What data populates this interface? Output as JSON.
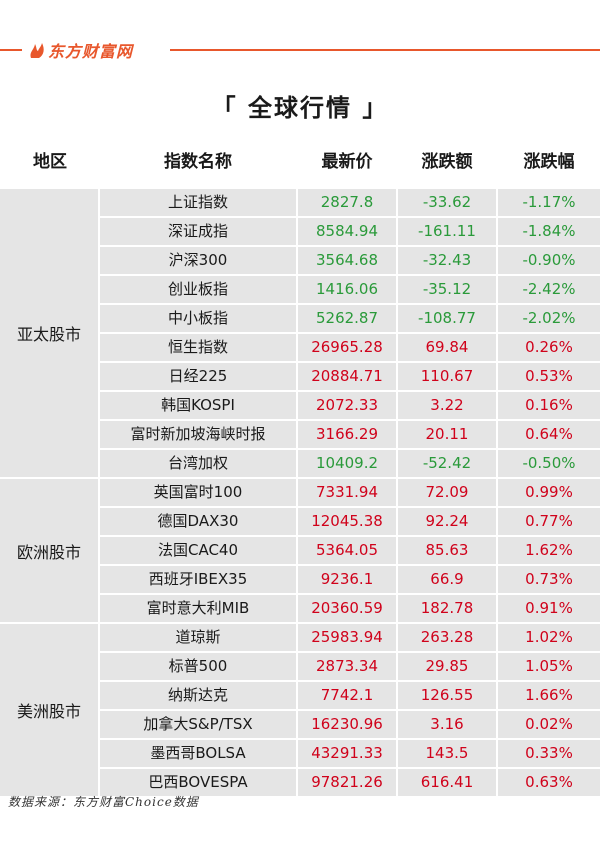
{
  "brand": {
    "logo_text": "东方财富网",
    "accent": "#e8572c"
  },
  "title": "「 全球行情 」",
  "headers": {
    "region": "地区",
    "name": "指数名称",
    "price": "最新价",
    "change": "涨跌额",
    "pct": "涨跌幅"
  },
  "colors": {
    "up": "#d0021b",
    "down": "#2a9a3a",
    "cell_bg": "#e5e5e5"
  },
  "regions": [
    {
      "label": "亚太股市",
      "rows": [
        {
          "name": "上证指数",
          "price": "2827.8",
          "change": "-33.62",
          "pct": "-1.17%",
          "dir": "down"
        },
        {
          "name": "深证成指",
          "price": "8584.94",
          "change": "-161.11",
          "pct": "-1.84%",
          "dir": "down"
        },
        {
          "name": "沪深300",
          "price": "3564.68",
          "change": "-32.43",
          "pct": "-0.90%",
          "dir": "down"
        },
        {
          "name": "创业板指",
          "price": "1416.06",
          "change": "-35.12",
          "pct": "-2.42%",
          "dir": "down"
        },
        {
          "name": "中小板指",
          "price": "5262.87",
          "change": "-108.77",
          "pct": "-2.02%",
          "dir": "down"
        },
        {
          "name": "恒生指数",
          "price": "26965.28",
          "change": "69.84",
          "pct": "0.26%",
          "dir": "up"
        },
        {
          "name": "日经225",
          "price": "20884.71",
          "change": "110.67",
          "pct": "0.53%",
          "dir": "up"
        },
        {
          "name": "韩国KOSPI",
          "price": "2072.33",
          "change": "3.22",
          "pct": "0.16%",
          "dir": "up"
        },
        {
          "name": "富时新加坡海峡时报",
          "price": "3166.29",
          "change": "20.11",
          "pct": "0.64%",
          "dir": "up"
        },
        {
          "name": "台湾加权",
          "price": "10409.2",
          "change": "-52.42",
          "pct": "-0.50%",
          "dir": "down"
        }
      ]
    },
    {
      "label": "欧洲股市",
      "rows": [
        {
          "name": "英国富时100",
          "price": "7331.94",
          "change": "72.09",
          "pct": "0.99%",
          "dir": "up"
        },
        {
          "name": "德国DAX30",
          "price": "12045.38",
          "change": "92.24",
          "pct": "0.77%",
          "dir": "up"
        },
        {
          "name": "法国CAC40",
          "price": "5364.05",
          "change": "85.63",
          "pct": "1.62%",
          "dir": "up"
        },
        {
          "name": "西班牙IBEX35",
          "price": "9236.1",
          "change": "66.9",
          "pct": "0.73%",
          "dir": "up"
        },
        {
          "name": "富时意大利MIB",
          "price": "20360.59",
          "change": "182.78",
          "pct": "0.91%",
          "dir": "up"
        }
      ]
    },
    {
      "label": "美洲股市",
      "rows": [
        {
          "name": "道琼斯",
          "price": "25983.94",
          "change": "263.28",
          "pct": "1.02%",
          "dir": "up"
        },
        {
          "name": "标普500",
          "price": "2873.34",
          "change": "29.85",
          "pct": "1.05%",
          "dir": "up"
        },
        {
          "name": "纳斯达克",
          "price": "7742.1",
          "change": "126.55",
          "pct": "1.66%",
          "dir": "up"
        },
        {
          "name": "加拿大S&P/TSX",
          "price": "16230.96",
          "change": "3.16",
          "pct": "0.02%",
          "dir": "up"
        },
        {
          "name": "墨西哥BOLSA",
          "price": "43291.33",
          "change": "143.5",
          "pct": "0.33%",
          "dir": "up"
        },
        {
          "name": "巴西BOVESPA",
          "price": "97821.26",
          "change": "616.41",
          "pct": "0.63%",
          "dir": "up"
        }
      ]
    }
  ],
  "source": "数据来源：东方财富Choice数据"
}
